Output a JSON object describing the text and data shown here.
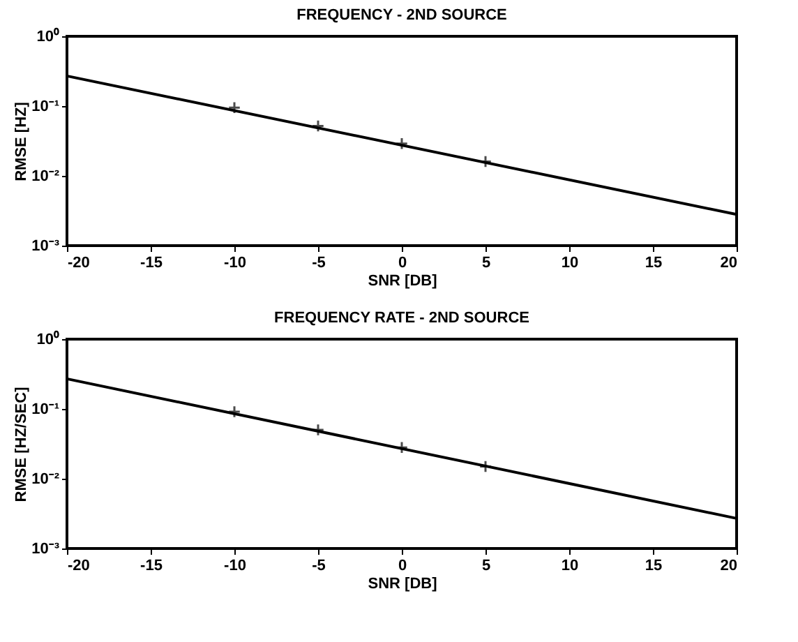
{
  "chart_data": [
    {
      "type": "line",
      "title": "FREQUENCY - 2ND SOURCE",
      "xlabel": "SNR [DB]",
      "ylabel": "RMSE [HZ]",
      "log": "y",
      "grid": false,
      "xlim": [
        -20,
        20
      ],
      "xticks": [
        -20,
        -15,
        -10,
        -5,
        0,
        5,
        10,
        15,
        20
      ],
      "ylim": [
        0.001,
        1
      ],
      "yticks": [
        {
          "value": 0.001,
          "label": "10⁻³"
        },
        {
          "value": 0.01,
          "label": "10⁻²"
        },
        {
          "value": 0.1,
          "label": "10⁻¹"
        },
        {
          "value": 1,
          "label": "10⁰"
        }
      ],
      "series": [
        {
          "color": "#000000",
          "line_style": "solid",
          "x": [
            -20,
            20
          ],
          "values": [
            0.27,
            0.0028
          ]
        },
        {
          "type": "scatter",
          "color": "#000000",
          "marker": "cross",
          "x": [
            -10,
            -5,
            0,
            5
          ],
          "values": [
            0.095,
            0.052,
            0.029,
            0.016
          ]
        }
      ]
    },
    {
      "type": "line",
      "title": "FREQUENCY RATE - 2ND SOURCE",
      "xlabel": "SNR [DB]",
      "ylabel": "RMSE [HZ/SEC]",
      "log": "y",
      "grid": false,
      "xlim": [
        -20,
        20
      ],
      "xticks": [
        -20,
        -15,
        -10,
        -5,
        0,
        5,
        10,
        15,
        20
      ],
      "ylim": [
        0.001,
        1
      ],
      "yticks": [
        {
          "value": 0.001,
          "label": "10⁻³"
        },
        {
          "value": 0.01,
          "label": "10⁻²"
        },
        {
          "value": 0.1,
          "label": "10⁻¹"
        },
        {
          "value": 1,
          "label": "10⁰"
        }
      ],
      "series": [
        {
          "color": "#000000",
          "line_style": "solid",
          "x": [
            -20,
            20
          ],
          "values": [
            0.27,
            0.0027
          ]
        },
        {
          "type": "scatter",
          "color": "#000000",
          "marker": "cross",
          "x": [
            -10,
            -5,
            0,
            5
          ],
          "values": [
            0.091,
            0.05,
            0.028,
            0.015
          ]
        }
      ]
    }
  ]
}
